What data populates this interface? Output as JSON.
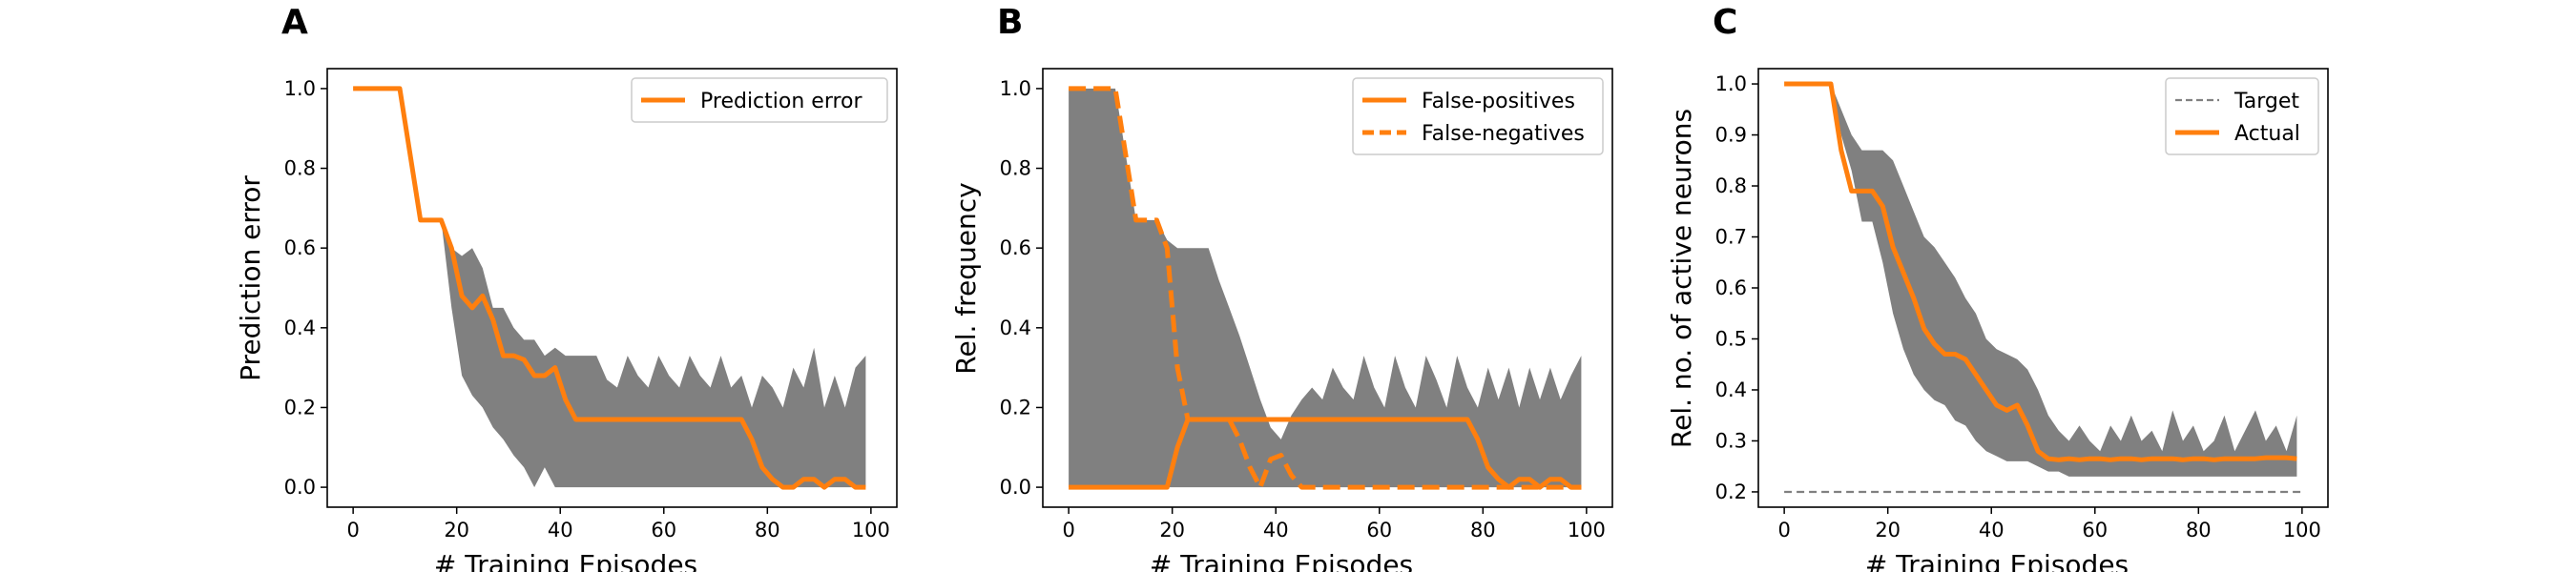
{
  "colors": {
    "accent": "#ff7f0e",
    "band": "#808080",
    "target": "#808080"
  },
  "chart_data": [
    {
      "type": "line",
      "panel_label": "A",
      "xlabel": "# Training Episodes",
      "ylabel": "Prediction error",
      "xlim": [
        -5,
        105
      ],
      "ylim": [
        -0.05,
        1.05
      ],
      "xticks": [
        0,
        20,
        40,
        60,
        80,
        100
      ],
      "xtick_labels": [
        "0",
        "20",
        "40",
        "60",
        "80",
        "100"
      ],
      "yticks": [
        0.0,
        0.2,
        0.4,
        0.6,
        0.8,
        1.0
      ],
      "ytick_labels": [
        "0.0",
        "0.2",
        "0.4",
        "0.6",
        "0.8",
        "1.0"
      ],
      "legend_position": "top-right",
      "band": {
        "x": [
          0,
          9,
          13,
          17,
          19,
          21,
          23,
          25,
          27,
          29,
          31,
          33,
          35,
          37,
          39,
          41,
          43,
          45,
          47,
          49,
          51,
          53,
          55,
          57,
          59,
          61,
          63,
          65,
          67,
          69,
          71,
          73,
          75,
          77,
          79,
          81,
          83,
          85,
          87,
          89,
          91,
          93,
          95,
          97,
          99
        ],
        "upper": [
          1.0,
          1.0,
          0.67,
          0.67,
          0.6,
          0.58,
          0.6,
          0.55,
          0.45,
          0.45,
          0.4,
          0.37,
          0.37,
          0.33,
          0.35,
          0.33,
          0.33,
          0.33,
          0.33,
          0.27,
          0.25,
          0.33,
          0.28,
          0.25,
          0.33,
          0.28,
          0.25,
          0.33,
          0.28,
          0.25,
          0.33,
          0.25,
          0.28,
          0.2,
          0.28,
          0.25,
          0.2,
          0.3,
          0.25,
          0.35,
          0.2,
          0.28,
          0.2,
          0.3,
          0.33
        ],
        "lower": [
          1.0,
          1.0,
          0.67,
          0.67,
          0.45,
          0.28,
          0.23,
          0.2,
          0.15,
          0.12,
          0.08,
          0.05,
          0.0,
          0.05,
          0.0,
          0.0,
          0.0,
          0.0,
          0.0,
          0.0,
          0.0,
          0.0,
          0.0,
          0.0,
          0.0,
          0.0,
          0.0,
          0.0,
          0.0,
          0.0,
          0.0,
          0.0,
          0.0,
          0.0,
          0.0,
          0.0,
          0.0,
          0.0,
          0.0,
          0.0,
          0.0,
          0.0,
          0.0,
          0.0,
          0.0
        ]
      },
      "series": [
        {
          "name": "Prediction error",
          "style": "solid",
          "x": [
            0,
            9,
            13,
            17,
            19,
            21,
            23,
            25,
            27,
            29,
            31,
            33,
            35,
            37,
            39,
            41,
            43,
            75,
            77,
            79,
            81,
            83,
            85,
            87,
            89,
            91,
            93,
            95,
            97,
            99
          ],
          "y": [
            1.0,
            1.0,
            0.67,
            0.67,
            0.6,
            0.48,
            0.45,
            0.48,
            0.42,
            0.33,
            0.33,
            0.32,
            0.28,
            0.28,
            0.3,
            0.22,
            0.17,
            0.17,
            0.12,
            0.05,
            0.02,
            0.0,
            0.0,
            0.02,
            0.02,
            0.0,
            0.02,
            0.02,
            0.0,
            0.0
          ]
        }
      ]
    },
    {
      "type": "line",
      "panel_label": "B",
      "xlabel": "# Training Episodes",
      "ylabel": "Rel. frequency",
      "xlim": [
        -5,
        105
      ],
      "ylim": [
        -0.05,
        1.05
      ],
      "xticks": [
        0,
        20,
        40,
        60,
        80,
        100
      ],
      "xtick_labels": [
        "0",
        "20",
        "40",
        "60",
        "80",
        "100"
      ],
      "yticks": [
        0.0,
        0.2,
        0.4,
        0.6,
        0.8,
        1.0
      ],
      "ytick_labels": [
        "0.0",
        "0.2",
        "0.4",
        "0.6",
        "0.8",
        "1.0"
      ],
      "legend_position": "top-right",
      "band": {
        "x": [
          0,
          9,
          13,
          17,
          19,
          21,
          23,
          25,
          27,
          29,
          31,
          33,
          35,
          37,
          39,
          41,
          43,
          45,
          47,
          49,
          51,
          53,
          55,
          57,
          59,
          61,
          63,
          65,
          67,
          69,
          71,
          73,
          75,
          77,
          79,
          81,
          83,
          85,
          87,
          89,
          91,
          93,
          95,
          97,
          99
        ],
        "upper": [
          1.0,
          1.0,
          0.67,
          0.67,
          0.62,
          0.6,
          0.6,
          0.6,
          0.6,
          0.52,
          0.45,
          0.38,
          0.3,
          0.22,
          0.15,
          0.12,
          0.18,
          0.22,
          0.25,
          0.22,
          0.3,
          0.25,
          0.22,
          0.33,
          0.25,
          0.2,
          0.33,
          0.25,
          0.2,
          0.33,
          0.27,
          0.2,
          0.33,
          0.25,
          0.2,
          0.3,
          0.22,
          0.3,
          0.2,
          0.3,
          0.22,
          0.3,
          0.22,
          0.28,
          0.33
        ],
        "lower": [
          0.0,
          0.0,
          0.0,
          0.0,
          0.0,
          0.0,
          0.0,
          0.0,
          0.0,
          0.0,
          0.0,
          0.0,
          0.0,
          0.0,
          0.0,
          0.0,
          0.0,
          0.0,
          0.0,
          0.0,
          0.0,
          0.0,
          0.0,
          0.0,
          0.0,
          0.0,
          0.0,
          0.0,
          0.0,
          0.0,
          0.0,
          0.0,
          0.0,
          0.0,
          0.0,
          0.0,
          0.0,
          0.0,
          0.0,
          0.0,
          0.0,
          0.0,
          0.0,
          0.0,
          0.0
        ]
      },
      "series": [
        {
          "name": "False-positives",
          "style": "solid",
          "x": [
            0,
            19,
            21,
            23,
            77,
            79,
            81,
            83,
            85,
            87,
            89,
            91,
            93,
            95,
            97,
            99
          ],
          "y": [
            0.0,
            0.0,
            0.1,
            0.17,
            0.17,
            0.12,
            0.05,
            0.02,
            0.0,
            0.02,
            0.02,
            0.0,
            0.02,
            0.02,
            0.0,
            0.0
          ]
        },
        {
          "name": "False-negatives",
          "style": "dashed",
          "x": [
            0,
            9,
            13,
            17,
            19,
            21,
            23,
            25,
            27,
            29,
            31,
            33,
            35,
            37,
            39,
            41,
            43,
            45,
            47,
            99
          ],
          "y": [
            1.0,
            1.0,
            0.67,
            0.67,
            0.6,
            0.3,
            0.17,
            0.17,
            0.17,
            0.17,
            0.17,
            0.12,
            0.05,
            0.0,
            0.07,
            0.08,
            0.03,
            0.0,
            0.0,
            0.0
          ]
        }
      ]
    },
    {
      "type": "line",
      "panel_label": "C",
      "xlabel": "# Training Episodes",
      "ylabel": "Rel. no. of active neurons",
      "xlim": [
        -5,
        105
      ],
      "ylim": [
        0.17,
        1.03
      ],
      "xticks": [
        0,
        20,
        40,
        60,
        80,
        100
      ],
      "xtick_labels": [
        "0",
        "20",
        "40",
        "60",
        "80",
        "100"
      ],
      "yticks": [
        0.2,
        0.3,
        0.4,
        0.5,
        0.6,
        0.7,
        0.8,
        0.9,
        1.0
      ],
      "ytick_labels": [
        "0.2",
        "0.3",
        "0.4",
        "0.5",
        "0.6",
        "0.7",
        "0.8",
        "0.9",
        "1.0"
      ],
      "legend_position": "top-right",
      "band": {
        "x": [
          0,
          9,
          11,
          13,
          15,
          17,
          19,
          21,
          23,
          25,
          27,
          29,
          31,
          33,
          35,
          37,
          39,
          41,
          43,
          45,
          47,
          49,
          51,
          53,
          55,
          57,
          59,
          61,
          63,
          65,
          67,
          69,
          71,
          73,
          75,
          77,
          79,
          81,
          83,
          85,
          87,
          89,
          91,
          93,
          95,
          97,
          99
        ],
        "upper": [
          1.0,
          1.0,
          0.95,
          0.9,
          0.87,
          0.87,
          0.87,
          0.85,
          0.8,
          0.75,
          0.7,
          0.68,
          0.65,
          0.62,
          0.58,
          0.55,
          0.5,
          0.48,
          0.47,
          0.46,
          0.44,
          0.4,
          0.35,
          0.32,
          0.3,
          0.33,
          0.3,
          0.28,
          0.33,
          0.3,
          0.35,
          0.3,
          0.32,
          0.28,
          0.36,
          0.3,
          0.33,
          0.28,
          0.3,
          0.35,
          0.28,
          0.32,
          0.36,
          0.3,
          0.33,
          0.28,
          0.35
        ],
        "lower": [
          1.0,
          1.0,
          0.9,
          0.83,
          0.73,
          0.73,
          0.65,
          0.55,
          0.48,
          0.43,
          0.4,
          0.38,
          0.37,
          0.34,
          0.33,
          0.3,
          0.28,
          0.27,
          0.26,
          0.26,
          0.26,
          0.25,
          0.24,
          0.24,
          0.23,
          0.23,
          0.23,
          0.23,
          0.23,
          0.23,
          0.23,
          0.23,
          0.23,
          0.23,
          0.23,
          0.23,
          0.23,
          0.23,
          0.23,
          0.23,
          0.23,
          0.23,
          0.23,
          0.23,
          0.23,
          0.23,
          0.23
        ]
      },
      "series": [
        {
          "name": "Target",
          "style": "dashed-thin",
          "x": [
            0,
            100
          ],
          "y": [
            0.2,
            0.2
          ]
        },
        {
          "name": "Actual",
          "style": "solid",
          "x": [
            0,
            9,
            11,
            13,
            15,
            17,
            19,
            21,
            23,
            25,
            27,
            29,
            31,
            33,
            35,
            37,
            39,
            41,
            43,
            45,
            47,
            49,
            51,
            53,
            55,
            57,
            59,
            61,
            63,
            65,
            67,
            69,
            71,
            73,
            75,
            77,
            79,
            81,
            83,
            85,
            87,
            89,
            91,
            93,
            95,
            97,
            99
          ],
          "y": [
            1.0,
            1.0,
            0.87,
            0.79,
            0.79,
            0.79,
            0.76,
            0.68,
            0.63,
            0.58,
            0.52,
            0.49,
            0.47,
            0.47,
            0.46,
            0.43,
            0.4,
            0.37,
            0.36,
            0.37,
            0.33,
            0.28,
            0.265,
            0.263,
            0.265,
            0.263,
            0.265,
            0.265,
            0.263,
            0.265,
            0.265,
            0.263,
            0.265,
            0.265,
            0.265,
            0.263,
            0.265,
            0.265,
            0.263,
            0.265,
            0.265,
            0.265,
            0.265,
            0.267,
            0.267,
            0.267,
            0.265
          ]
        }
      ]
    }
  ]
}
